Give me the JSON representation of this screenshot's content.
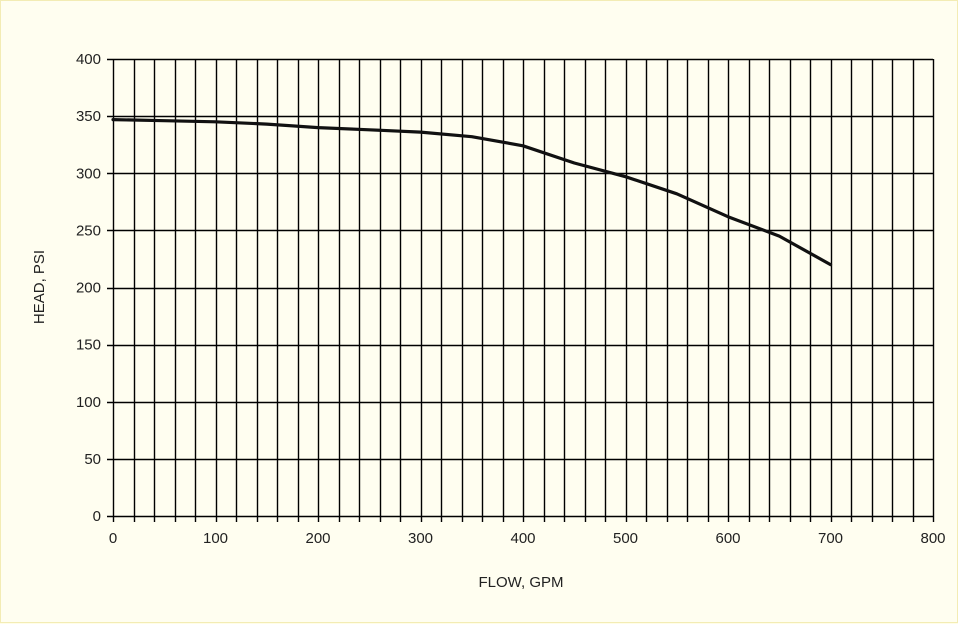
{
  "chart_data": {
    "type": "line",
    "title": "",
    "xlabel": "FLOW, GPM",
    "ylabel": "HEAD, PSI",
    "xlim": [
      0,
      800
    ],
    "ylim": [
      0,
      400
    ],
    "x_ticks": [
      "0",
      "100",
      "200",
      "300",
      "400",
      "500",
      "600",
      "700",
      "800"
    ],
    "y_ticks": [
      "0",
      "50",
      "100",
      "150",
      "200",
      "250",
      "300",
      "350",
      "400"
    ],
    "grid": {
      "vertical_step": 20,
      "horizontal_step": 50
    },
    "series": [
      {
        "x": [
          0,
          50,
          100,
          150,
          200,
          250,
          300,
          350,
          400,
          450,
          500,
          550,
          600,
          650,
          700
        ],
        "y": [
          347,
          346,
          345,
          343,
          340,
          338,
          336,
          332,
          324,
          309,
          297,
          282,
          262,
          245,
          220
        ]
      }
    ],
    "colors": {
      "line": "#111111",
      "grid": "#000000",
      "background": "#fffef0"
    }
  }
}
